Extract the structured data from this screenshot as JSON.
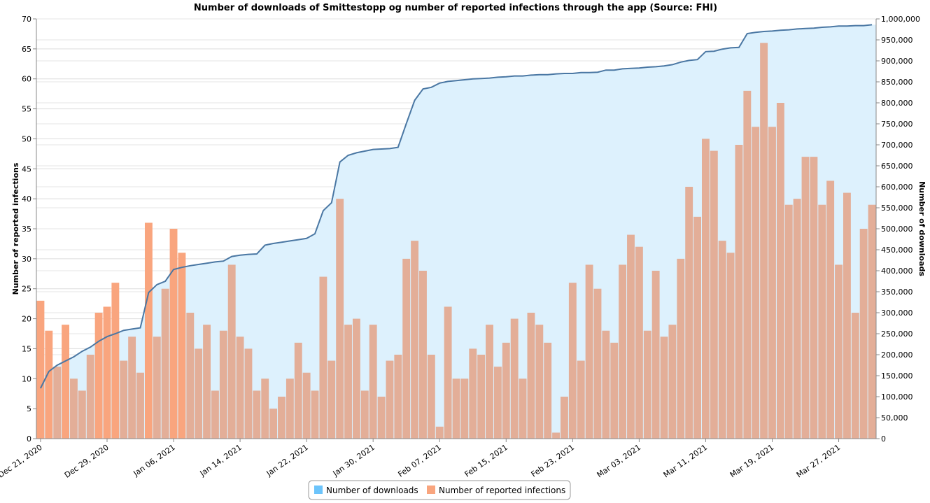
{
  "chart_data": {
    "type": "bar+line+area",
    "title": "Number of downloads of Smittestopp og number of reported infections through the app (Source: FHI)",
    "y_left_label": "Number of reported infections",
    "y_right_label": "Number of downloads",
    "y_left_range": [
      0,
      70
    ],
    "y_right_range": [
      0,
      1000000
    ],
    "y_left_ticks": [
      "0",
      "5",
      "10",
      "15",
      "20",
      "25",
      "30",
      "35",
      "40",
      "45",
      "50",
      "55",
      "60",
      "65",
      "70"
    ],
    "y_right_ticks": [
      "0",
      "50,000",
      "100,000",
      "150,000",
      "200,000",
      "250,000",
      "300,000",
      "350,000",
      "400,000",
      "450,000",
      "500,000",
      "550,000",
      "600,000",
      "650,000",
      "700,000",
      "750,000",
      "800,000",
      "850,000",
      "900,000",
      "950,000",
      "1,000,000"
    ],
    "x_start": "2020-12-21",
    "x_ticks": [
      {
        "label": "Dec 21, 2020",
        "day": 0
      },
      {
        "label": "Dec 29, 2020",
        "day": 8
      },
      {
        "label": "Jan 06, 2021",
        "day": 16
      },
      {
        "label": "Jan 14, 2021",
        "day": 24
      },
      {
        "label": "Jan 22, 2021",
        "day": 32
      },
      {
        "label": "Jan 30, 2021",
        "day": 40
      },
      {
        "label": "Feb 07, 2021",
        "day": 48
      },
      {
        "label": "Feb 15, 2021",
        "day": 56
      },
      {
        "label": "Feb 23, 2021",
        "day": 64
      },
      {
        "label": "Mar 03, 2021",
        "day": 72
      },
      {
        "label": "Mar 11, 2021",
        "day": 80
      },
      {
        "label": "Mar 19, 2021",
        "day": 88
      },
      {
        "label": "Mar 27, 2021",
        "day": 96
      }
    ],
    "infections": [
      23,
      18,
      12,
      19,
      10,
      8,
      14,
      21,
      22,
      26,
      13,
      17,
      11,
      36,
      17,
      25,
      35,
      31,
      21,
      15,
      19,
      8,
      18,
      29,
      17,
      15,
      8,
      10,
      5,
      7,
      10,
      16,
      11,
      8,
      27,
      13,
      40,
      19,
      20,
      8,
      19,
      7,
      13,
      14,
      30,
      33,
      28,
      14,
      2,
      22,
      10,
      10,
      15,
      14,
      19,
      12,
      16,
      20,
      10,
      21,
      19,
      16,
      1,
      7,
      26,
      13,
      29,
      25,
      18,
      16,
      29,
      34,
      32,
      18,
      28,
      17,
      19,
      30,
      42,
      37,
      50,
      48,
      33,
      31,
      49,
      58,
      52,
      66,
      52,
      56,
      39,
      40,
      47,
      47,
      39,
      43,
      29,
      41,
      21,
      35,
      39
    ],
    "downloads": [
      120000,
      160000,
      175000,
      185000,
      195000,
      208000,
      218000,
      232000,
      243000,
      250000,
      258000,
      261000,
      264000,
      348000,
      367000,
      375000,
      403000,
      408000,
      412000,
      415000,
      418000,
      421000,
      423000,
      434000,
      437000,
      439000,
      440000,
      461000,
      465000,
      468000,
      471000,
      474000,
      477000,
      488000,
      543000,
      562000,
      659000,
      675000,
      681000,
      685000,
      689000,
      690000,
      691000,
      694000,
      751000,
      806000,
      833000,
      837000,
      847000,
      851000,
      853000,
      855000,
      857000,
      858000,
      859000,
      861000,
      862000,
      864000,
      864000,
      866000,
      867000,
      867000,
      869000,
      870000,
      870000,
      872000,
      872000,
      873000,
      878000,
      878000,
      881000,
      882000,
      883000,
      885000,
      886000,
      888000,
      891000,
      897000,
      901000,
      903000,
      922000,
      923000,
      928000,
      931000,
      932000,
      965000,
      968000,
      970000,
      971000,
      973000,
      974000,
      976000,
      977000,
      978000,
      980000,
      981000,
      983000,
      983000,
      984000,
      984000,
      986000
    ],
    "highlighted_days": [
      0,
      1,
      3,
      7,
      8,
      9,
      13,
      16,
      17
    ],
    "colors": {
      "bar": "#E3AE98",
      "bar_highlight": "#F9A57E",
      "area": "#DDF1FD",
      "line": "#4A77A3",
      "legend_downloads": "#6CC4FB",
      "legend_infections": "#F9A57E"
    },
    "legend": [
      {
        "label": "Number of downloads",
        "color_key": "legend_downloads"
      },
      {
        "label": "Number of reported infections",
        "color_key": "legend_infections"
      }
    ],
    "legend_placement": "bottom-center",
    "grid": true
  }
}
